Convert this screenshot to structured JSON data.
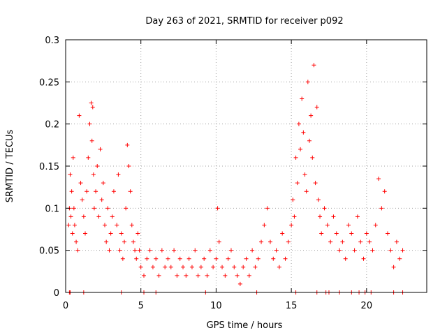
{
  "chart_data": {
    "type": "scatter",
    "title": "Day 263 of 2021, SRMTID for receiver p092",
    "xlabel": "GPS time / hours",
    "ylabel": "SRMTID / TECUs",
    "xlim": [
      0,
      24
    ],
    "ylim": [
      0,
      0.3
    ],
    "xticks": [
      0,
      5,
      10,
      15,
      20
    ],
    "xtick_labels": [
      "0",
      "5",
      "10",
      "15",
      "20"
    ],
    "yticks": [
      0,
      0.05,
      0.1,
      0.15,
      0.2,
      0.25,
      0.3
    ],
    "ytick_labels": [
      "0",
      "0.05",
      "0.1",
      "0.15",
      "0.2",
      "0.25",
      "0.3"
    ],
    "grid": true,
    "marker": "+",
    "color": "#ff0000",
    "series": [
      {
        "name": "SRMTID",
        "x": [
          0.2,
          0.25,
          0.3,
          0.35,
          0.4,
          0.45,
          0.5,
          0.55,
          0.6,
          0.7,
          0.8,
          0.9,
          1.0,
          1.1,
          1.2,
          1.3,
          1.4,
          1.5,
          1.6,
          1.7,
          1.75,
          1.8,
          1.85,
          1.9,
          2.0,
          2.1,
          2.2,
          2.3,
          2.4,
          2.5,
          2.6,
          2.7,
          2.8,
          2.9,
          3.0,
          3.1,
          3.2,
          3.4,
          3.5,
          3.6,
          3.7,
          3.8,
          3.9,
          4.0,
          4.1,
          4.2,
          4.3,
          4.4,
          4.5,
          4.6,
          4.7,
          4.8,
          4.9,
          5.0,
          5.2,
          5.4,
          5.6,
          5.8,
          6.0,
          6.2,
          6.4,
          6.6,
          6.8,
          7.0,
          7.2,
          7.4,
          7.6,
          7.8,
          8.0,
          8.2,
          8.4,
          8.6,
          8.8,
          9.0,
          9.2,
          9.4,
          9.6,
          9.8,
          10.0,
          10.1,
          10.2,
          10.4,
          10.6,
          10.8,
          11.0,
          11.2,
          11.4,
          11.6,
          11.8,
          12.0,
          12.2,
          12.4,
          12.6,
          12.8,
          13.0,
          13.2,
          13.4,
          13.6,
          13.8,
          14.0,
          14.2,
          14.4,
          14.6,
          14.8,
          15.0,
          15.1,
          15.2,
          15.3,
          15.4,
          15.5,
          15.6,
          15.7,
          15.8,
          15.9,
          16.0,
          16.1,
          16.2,
          16.3,
          16.4,
          16.5,
          16.6,
          16.7,
          16.8,
          16.9,
          17.0,
          17.2,
          17.4,
          17.6,
          17.8,
          18.0,
          18.2,
          18.4,
          18.6,
          18.8,
          19.0,
          19.2,
          19.4,
          19.6,
          19.8,
          20.0,
          20.2,
          20.4,
          20.6,
          20.8,
          21.0,
          21.2,
          21.4,
          21.6,
          21.8,
          22.0,
          22.2,
          22.4
        ],
        "y": [
          0.08,
          0.1,
          0.14,
          0.09,
          0.12,
          0.07,
          0.16,
          0.1,
          0.08,
          0.06,
          0.05,
          0.21,
          0.13,
          0.11,
          0.09,
          0.07,
          0.12,
          0.16,
          0.2,
          0.225,
          0.18,
          0.22,
          0.14,
          0.1,
          0.12,
          0.15,
          0.09,
          0.17,
          0.11,
          0.13,
          0.08,
          0.06,
          0.1,
          0.05,
          0.07,
          0.09,
          0.12,
          0.08,
          0.14,
          0.05,
          0.07,
          0.04,
          0.06,
          0.1,
          0.175,
          0.15,
          0.12,
          0.08,
          0.06,
          0.05,
          0.04,
          0.07,
          0.05,
          0.03,
          0.02,
          0.04,
          0.05,
          0.03,
          0.04,
          0.02,
          0.05,
          0.03,
          0.04,
          0.03,
          0.05,
          0.02,
          0.04,
          0.03,
          0.02,
          0.04,
          0.03,
          0.05,
          0.02,
          0.03,
          0.04,
          0.02,
          0.05,
          0.03,
          0.04,
          0.1,
          0.06,
          0.03,
          0.02,
          0.04,
          0.05,
          0.03,
          0.02,
          0.01,
          0.03,
          0.04,
          0.02,
          0.05,
          0.03,
          0.04,
          0.06,
          0.08,
          0.1,
          0.06,
          0.04,
          0.05,
          0.03,
          0.07,
          0.04,
          0.06,
          0.08,
          0.11,
          0.09,
          0.16,
          0.13,
          0.2,
          0.17,
          0.23,
          0.19,
          0.14,
          0.12,
          0.25,
          0.18,
          0.21,
          0.16,
          0.27,
          0.13,
          0.22,
          0.11,
          0.09,
          0.07,
          0.1,
          0.08,
          0.06,
          0.09,
          0.07,
          0.05,
          0.06,
          0.04,
          0.08,
          0.07,
          0.05,
          0.09,
          0.06,
          0.04,
          0.07,
          0.06,
          0.05,
          0.08,
          0.135,
          0.1,
          0.12,
          0.07,
          0.05,
          0.03,
          0.06,
          0.04,
          0.05
        ],
        "zero_x": [
          0.25,
          0.3,
          1.2,
          3.7,
          5.2,
          6.0,
          9.3,
          12.7,
          15.3,
          16.7,
          17.3,
          17.5,
          18.2,
          19.0,
          19.5,
          19.9,
          20.3,
          21.8,
          22.4
        ]
      }
    ]
  }
}
